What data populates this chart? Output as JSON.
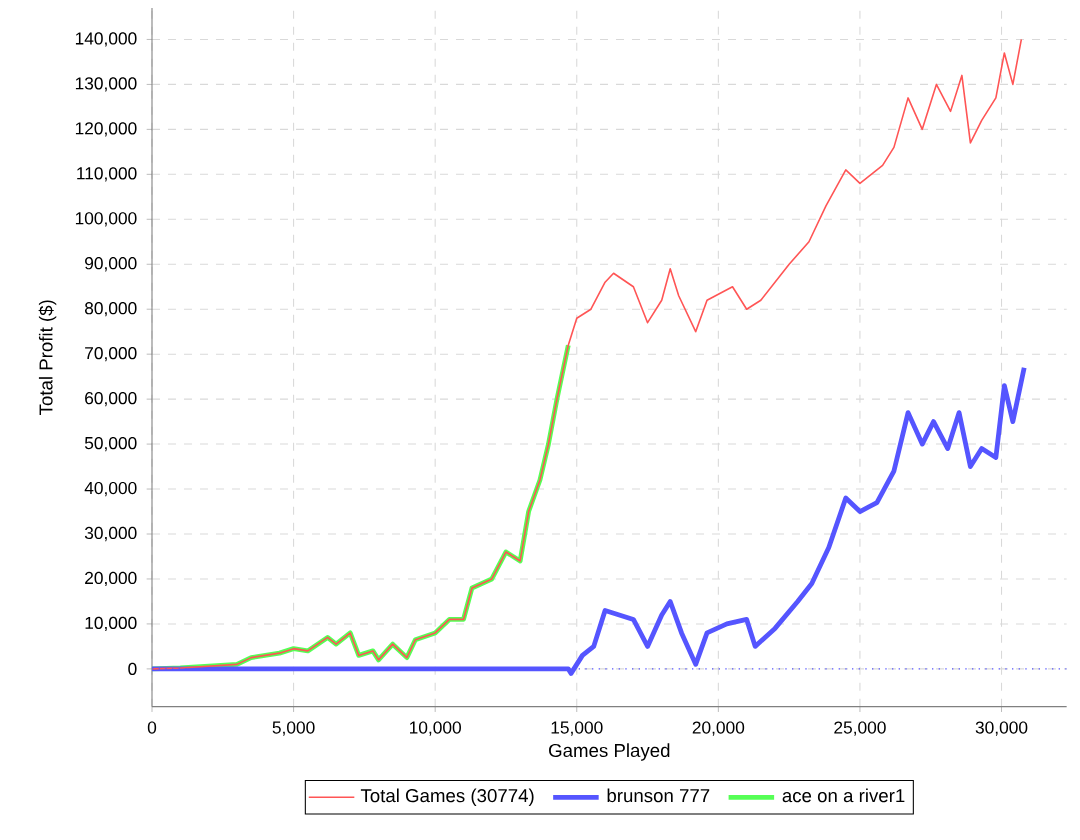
{
  "chart_data": {
    "type": "line",
    "xlabel": "Games Played",
    "ylabel": "Total Profit ($)",
    "xlim": [
      0,
      32300
    ],
    "ylim": [
      -8400,
      147000
    ],
    "xticks": [
      0,
      {
        "value": 5000,
        "label": "5,000"
      },
      {
        "value": 10000,
        "label": "10,000"
      },
      {
        "value": 15000,
        "label": "15,000"
      },
      {
        "value": 20000,
        "label": "20,000"
      },
      {
        "value": 25000,
        "label": "25,000"
      },
      {
        "value": 30000,
        "label": "30,000"
      }
    ],
    "yticks": [
      0,
      {
        "value": 10000,
        "label": "10,000"
      },
      {
        "value": 20000,
        "label": "20,000"
      },
      {
        "value": 30000,
        "label": "30,000"
      },
      {
        "value": 40000,
        "label": "40,000"
      },
      {
        "value": 50000,
        "label": "50,000"
      },
      {
        "value": 60000,
        "label": "60,000"
      },
      {
        "value": 70000,
        "label": "70,000"
      },
      {
        "value": 80000,
        "label": "80,000"
      },
      {
        "value": 90000,
        "label": "90,000"
      },
      {
        "value": 100000,
        "label": "100,000"
      },
      {
        "value": 110000,
        "label": "110,000"
      },
      {
        "value": 120000,
        "label": "120,000"
      },
      {
        "value": 130000,
        "label": "130,000"
      },
      {
        "value": 140000,
        "label": "140,000"
      }
    ],
    "grid": true,
    "legend": "bottom",
    "line_style": "solid",
    "marker": "none",
    "ref_lines": [
      {
        "axis": "y",
        "value": 0,
        "color": "#5555ff",
        "line_style": "dotted"
      }
    ],
    "series": [
      {
        "name": "Total Games (30774)",
        "color": "#ff5555",
        "x": [
          0,
          1000,
          2000,
          3000,
          3500,
          4500,
          5000,
          5500,
          6200,
          6500,
          7000,
          7300,
          7800,
          8000,
          8500,
          9000,
          9300,
          10000,
          10500,
          11000,
          11300,
          12000,
          12500,
          13000,
          13300,
          13700,
          14000,
          14300,
          14700,
          15000,
          15500,
          16000,
          16300,
          17000,
          17500,
          18000,
          18300,
          18600,
          19200,
          19600,
          20500,
          21000,
          21500,
          22500,
          23200,
          23800,
          24500,
          25000,
          25800,
          26200,
          26700,
          27200,
          27700,
          28200,
          28600,
          28900,
          29300,
          29800,
          30100,
          30400,
          30700
        ],
        "values": [
          0,
          200,
          600,
          1000,
          2500,
          3500,
          4500,
          4000,
          7000,
          5500,
          8000,
          3000,
          4000,
          2000,
          5500,
          2500,
          6500,
          8000,
          11000,
          11000,
          18000,
          20000,
          26000,
          24000,
          35000,
          42000,
          50000,
          60000,
          72000,
          78000,
          80000,
          86000,
          88000,
          85000,
          77000,
          82000,
          89000,
          83000,
          75000,
          82000,
          85000,
          80000,
          82000,
          90000,
          95000,
          103000,
          111000,
          108000,
          112000,
          116000,
          127000,
          120000,
          130000,
          124000,
          132000,
          117000,
          122000,
          127000,
          137000,
          130000,
          140000
        ]
      },
      {
        "name": "brunson 777",
        "color": "#5555ff",
        "x": [
          0,
          14700,
          14800,
          15200,
          15600,
          16000,
          16500,
          17000,
          17500,
          18000,
          18300,
          18700,
          19200,
          19600,
          20300,
          21000,
          21300,
          22000,
          22800,
          23300,
          23900,
          24500,
          25000,
          25600,
          26200,
          26700,
          27200,
          27600,
          28100,
          28500,
          28900,
          29300,
          29800,
          30100,
          30400,
          30800
        ],
        "values": [
          0,
          0,
          -1000,
          3000,
          5000,
          13000,
          12000,
          11000,
          5000,
          12000,
          15000,
          8000,
          1000,
          8000,
          10000,
          11000,
          5000,
          9000,
          15000,
          19000,
          27000,
          38000,
          35000,
          37000,
          44000,
          57000,
          50000,
          55000,
          49000,
          57000,
          45000,
          49000,
          47000,
          63000,
          55000,
          67000
        ]
      },
      {
        "name": "ace on a river1",
        "color": "#55ff55",
        "x": [
          0,
          1000,
          2000,
          3000,
          3500,
          4500,
          5000,
          5500,
          6200,
          6500,
          7000,
          7300,
          7800,
          8000,
          8500,
          9000,
          9300,
          10000,
          10500,
          11000,
          11300,
          12000,
          12500,
          13000,
          13300,
          13700,
          14000,
          14300,
          14700
        ],
        "values": [
          0,
          200,
          600,
          1000,
          2500,
          3500,
          4500,
          4000,
          7000,
          5500,
          8000,
          3000,
          4000,
          2000,
          5500,
          2500,
          6500,
          8000,
          11000,
          11000,
          18000,
          20000,
          26000,
          24000,
          35000,
          42000,
          50000,
          60000,
          72000
        ]
      }
    ]
  }
}
